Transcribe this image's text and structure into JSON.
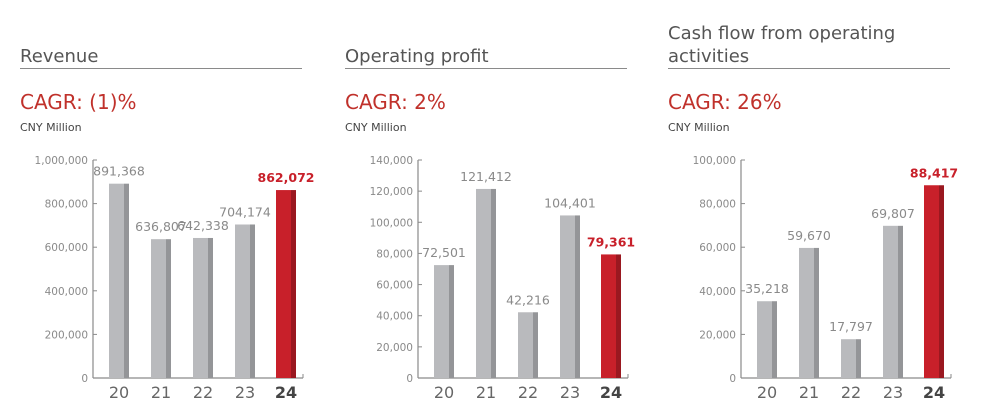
{
  "unit": "CNY Million",
  "colors": {
    "bar": "#b9babd",
    "bar_shade": "#949598",
    "highlight": "#c8202a",
    "highlight_shade": "#9a1820",
    "cagr": "#c0312b"
  },
  "chart_data": [
    {
      "type": "bar",
      "title": "Revenue",
      "cagr": "CAGR: (1)%",
      "categories": [
        "20",
        "21",
        "22",
        "23",
        "24"
      ],
      "values": [
        891368,
        636807,
        642338,
        704174,
        862072
      ],
      "labels": [
        "891,368",
        "636,807",
        "642,338",
        "704,174",
        "862,072"
      ],
      "highlight_index": 4,
      "ylim": [
        0,
        1000000
      ],
      "yticks": [
        "0",
        "200,000",
        "400,000",
        "600,000",
        "800,000",
        "1,000,000"
      ],
      "ytick_values": [
        0,
        200000,
        400000,
        600000,
        800000,
        1000000
      ]
    },
    {
      "type": "bar",
      "title": "Operating profit",
      "cagr": "CAGR: 2%",
      "categories": [
        "20",
        "21",
        "22",
        "23",
        "24"
      ],
      "values": [
        72501,
        121412,
        42216,
        104401,
        79361
      ],
      "labels": [
        "72,501",
        "121,412",
        "42,216",
        "104,401",
        "79,361"
      ],
      "highlight_index": 4,
      "ylim": [
        0,
        140000
      ],
      "yticks": [
        "0",
        "20,000",
        "40,000",
        "60,000",
        "80,000",
        "100,000",
        "120,000",
        "140,000"
      ],
      "ytick_values": [
        0,
        20000,
        40000,
        60000,
        80000,
        100000,
        120000,
        140000
      ]
    },
    {
      "type": "bar",
      "title": "Cash flow from operating activities",
      "cagr": "CAGR: 26%",
      "categories": [
        "20",
        "21",
        "22",
        "23",
        "24"
      ],
      "values": [
        35218,
        59670,
        17797,
        69807,
        88417
      ],
      "labels": [
        "35,218",
        "59,670",
        "17,797",
        "69,807",
        "88,417"
      ],
      "highlight_index": 4,
      "ylim": [
        0,
        100000
      ],
      "yticks": [
        "0",
        "20,000",
        "40,000",
        "60,000",
        "80,000",
        "100,000"
      ],
      "ytick_values": [
        0,
        20000,
        40000,
        60000,
        80000,
        100000
      ]
    }
  ]
}
